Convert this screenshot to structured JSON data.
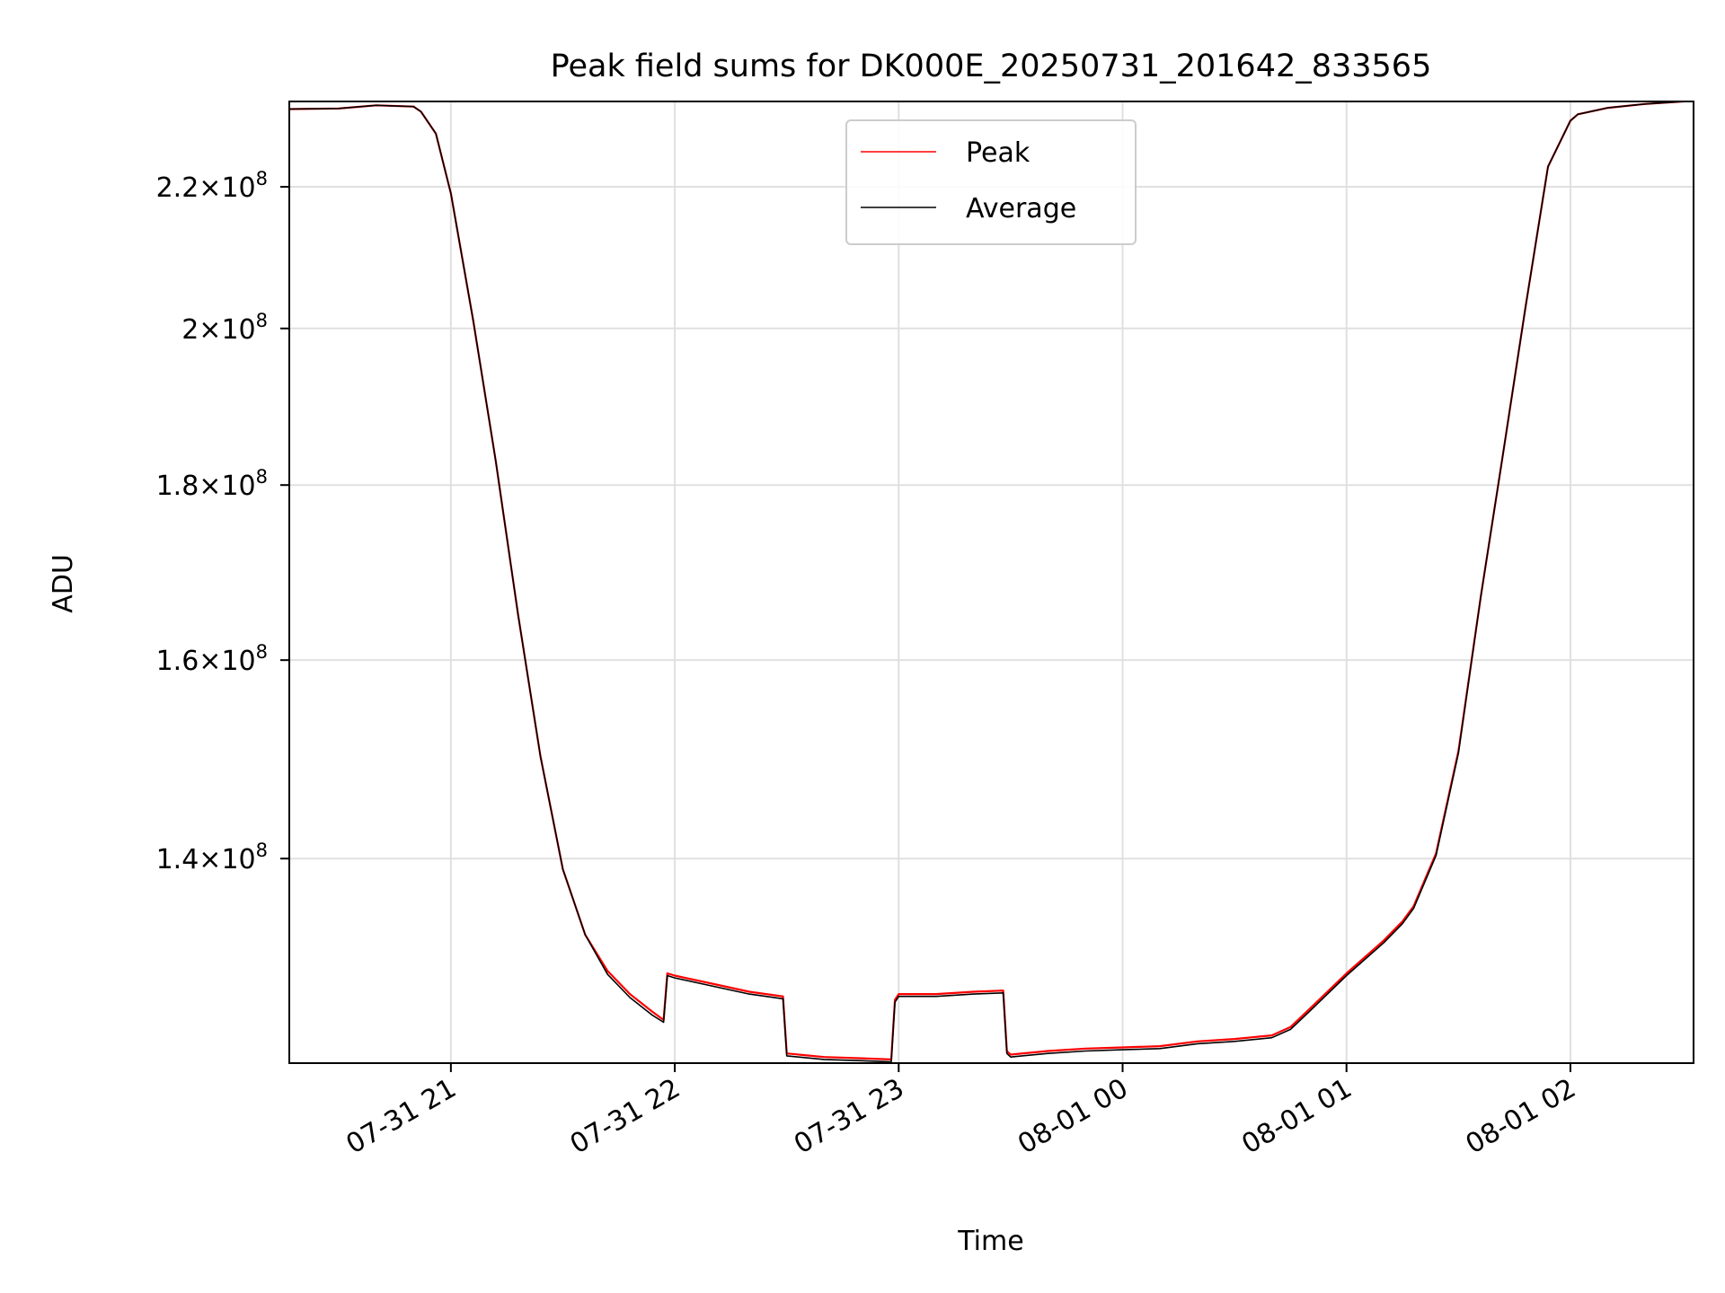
{
  "chart_data": {
    "type": "line",
    "title": "Peak field sums for DK000E_20250731_201642_833565",
    "xlabel": "Time",
    "ylabel": "ADU",
    "grid": true,
    "legend_position": "top-center",
    "x_axis": {
      "unit": "time",
      "range": [
        "2025-07-31 20:16:42",
        "2025-08-01 02:33:00"
      ],
      "tick_values": [
        "2025-07-31 21:00",
        "2025-07-31 22:00",
        "2025-07-31 23:00",
        "2025-08-01 00:00",
        "2025-08-01 01:00",
        "2025-08-01 02:00"
      ],
      "tick_labels": [
        "07-31 21",
        "07-31 22",
        "07-31 23",
        "08-01 00",
        "08-01 01",
        "08-01 02"
      ]
    },
    "y_axis": {
      "scale": "log",
      "range": [
        122000000,
        233000000
      ],
      "tick_values": [
        140000000,
        160000000,
        180000000,
        200000000,
        220000000
      ],
      "tick_mantissas": [
        "1.4",
        "1.6",
        "1.8",
        "2",
        "2.2"
      ],
      "tick_exponent": "8"
    },
    "times": [
      "20:16",
      "20:30",
      "20:40",
      "20:50",
      "20:52",
      "20:56",
      "21:00",
      "21:06",
      "21:12",
      "21:18",
      "21:24",
      "21:30",
      "21:36",
      "21:42",
      "21:48",
      "21:54",
      "21:57",
      "21:58",
      "22:00",
      "22:10",
      "22:20",
      "22:29",
      "22:30",
      "22:40",
      "22:50",
      "22:58",
      "22:59",
      "23:00",
      "23:10",
      "23:20",
      "23:28",
      "23:29",
      "23:30",
      "23:40",
      "23:50",
      "00:00",
      "00:10",
      "00:20",
      "00:30",
      "00:40",
      "00:45",
      "00:50",
      "01:00",
      "01:10",
      "01:15",
      "01:18",
      "01:24",
      "01:30",
      "01:36",
      "01:42",
      "01:48",
      "01:54",
      "02:00",
      "02:02",
      "02:10",
      "02:20",
      "02:33"
    ],
    "series": [
      {
        "name": "Peak",
        "color": "#ff0000",
        "values": [
          231800000,
          231900000,
          232400000,
          232200000,
          231400000,
          228000000,
          219000000,
          201000000,
          183000000,
          165000000,
          150000000,
          139000000,
          133000000,
          129800000,
          127800000,
          126300000,
          125600000,
          129600000,
          129400000,
          128700000,
          128000000,
          127600000,
          122800000,
          122500000,
          122400000,
          122300000,
          127300000,
          127800000,
          127800000,
          128000000,
          128100000,
          123000000,
          122700000,
          123000000,
          123200000,
          123300000,
          123400000,
          123800000,
          124000000,
          124300000,
          125000000,
          126500000,
          129600000,
          132500000,
          134200000,
          135600000,
          140500000,
          150500000,
          167000000,
          184000000,
          203000000,
          223000000,
          230000000,
          231000000,
          232000000,
          232600000,
          233100000
        ]
      },
      {
        "name": "Average",
        "color": "#000000",
        "values": [
          231800000,
          231900000,
          232400000,
          232200000,
          231400000,
          228000000,
          219000000,
          201000000,
          183000000,
          165000000,
          150000000,
          139000000,
          133000000,
          129500000,
          127500000,
          126000000,
          125400000,
          129400000,
          129200000,
          128500000,
          127800000,
          127400000,
          122600000,
          122300000,
          122200000,
          122100000,
          127100000,
          127600000,
          127600000,
          127800000,
          127900000,
          122800000,
          122500000,
          122800000,
          123000000,
          123100000,
          123200000,
          123600000,
          123800000,
          124100000,
          124800000,
          126300000,
          129400000,
          132300000,
          134000000,
          135400000,
          140300000,
          150300000,
          167000000,
          184000000,
          203000000,
          223000000,
          230000000,
          231000000,
          232000000,
          232600000,
          233100000
        ]
      }
    ]
  }
}
